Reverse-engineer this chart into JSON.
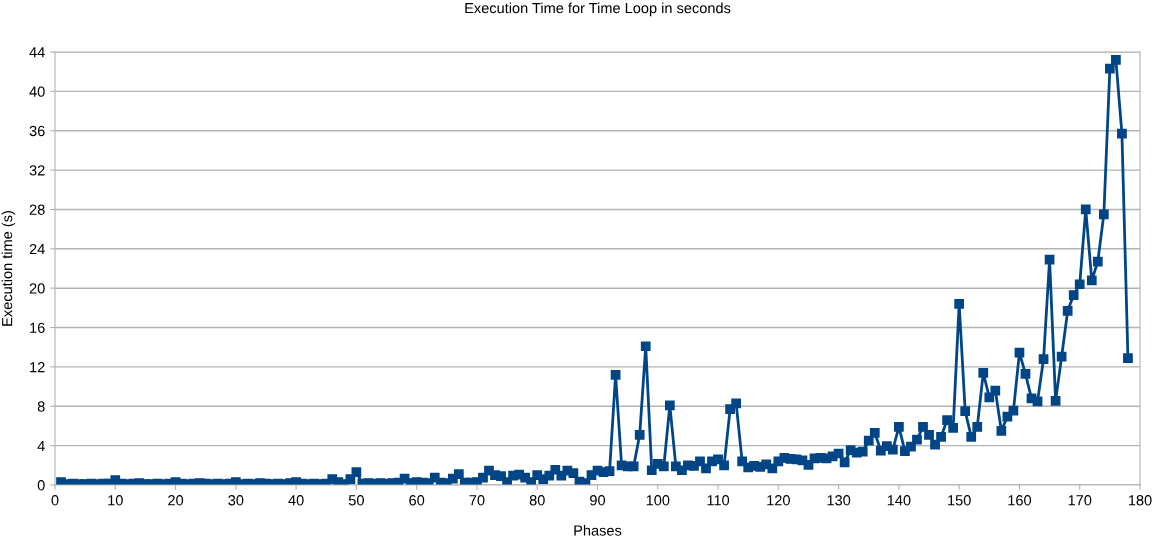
{
  "chart_data": {
    "type": "line",
    "title": "Execution Time for Time Loop in seconds",
    "xlabel": "Phases",
    "ylabel": "Execution time (s)",
    "x": [
      1,
      2,
      3,
      4,
      5,
      6,
      7,
      8,
      9,
      10,
      11,
      12,
      13,
      14,
      15,
      16,
      17,
      18,
      19,
      20,
      21,
      22,
      23,
      24,
      25,
      26,
      27,
      28,
      29,
      30,
      31,
      32,
      33,
      34,
      35,
      36,
      37,
      38,
      39,
      40,
      41,
      42,
      43,
      44,
      45,
      46,
      47,
      48,
      49,
      50,
      51,
      52,
      53,
      54,
      55,
      56,
      57,
      58,
      59,
      60,
      61,
      62,
      63,
      64,
      65,
      66,
      67,
      68,
      69,
      70,
      71,
      72,
      73,
      74,
      75,
      76,
      77,
      78,
      79,
      80,
      81,
      82,
      83,
      84,
      85,
      86,
      87,
      88,
      89,
      90,
      91,
      92,
      93,
      94,
      95,
      96,
      97,
      98,
      99,
      100,
      101,
      102,
      103,
      104,
      105,
      106,
      107,
      108,
      109,
      110,
      111,
      112,
      113,
      114,
      115,
      116,
      117,
      118,
      119,
      120,
      121,
      122,
      123,
      124,
      125,
      126,
      127,
      128,
      129,
      130,
      131,
      132,
      133,
      134,
      135,
      136,
      137,
      138,
      139,
      140,
      141,
      142,
      143,
      144,
      145,
      146,
      147,
      148,
      149,
      150,
      151,
      152,
      153,
      154,
      155,
      156,
      157,
      158,
      159,
      160,
      161,
      162,
      163,
      164,
      165,
      166,
      167,
      168,
      169,
      170,
      171,
      172,
      173,
      174,
      175,
      176,
      177,
      178
    ],
    "series": [
      {
        "color": "#004586",
        "values": [
          0.3,
          0.1,
          0.15,
          0.1,
          0.1,
          0.15,
          0.1,
          0.15,
          0.15,
          0.5,
          0.15,
          0.1,
          0.15,
          0.2,
          0.1,
          0.1,
          0.15,
          0.1,
          0.15,
          0.3,
          0.15,
          0.1,
          0.15,
          0.2,
          0.15,
          0.1,
          0.15,
          0.1,
          0.15,
          0.3,
          0.1,
          0.15,
          0.1,
          0.2,
          0.15,
          0.1,
          0.15,
          0.1,
          0.2,
          0.3,
          0.15,
          0.1,
          0.15,
          0.1,
          0.15,
          0.6,
          0.3,
          0.1,
          0.6,
          1.3,
          0.15,
          0.2,
          0.15,
          0.2,
          0.15,
          0.2,
          0.25,
          0.65,
          0.2,
          0.3,
          0.25,
          0.2,
          0.75,
          0.25,
          0.2,
          0.65,
          1.1,
          0.25,
          0.25,
          0.3,
          0.75,
          1.45,
          1.0,
          0.9,
          0.3,
          0.95,
          1.05,
          0.75,
          0.3,
          1.0,
          0.6,
          0.95,
          1.55,
          0.95,
          1.45,
          1.2,
          0.35,
          0.2,
          1.0,
          1.45,
          1.3,
          1.4,
          11.2,
          2.0,
          1.9,
          1.9,
          5.1,
          14.1,
          1.5,
          2.15,
          1.9,
          8.1,
          1.9,
          1.5,
          2.0,
          1.95,
          2.4,
          1.7,
          2.4,
          2.6,
          2.0,
          7.7,
          8.3,
          2.4,
          1.8,
          1.95,
          1.85,
          2.1,
          1.7,
          2.4,
          2.75,
          2.65,
          2.6,
          2.5,
          2.05,
          2.7,
          2.75,
          2.7,
          2.9,
          3.2,
          2.3,
          3.55,
          3.3,
          3.4,
          4.5,
          5.3,
          3.5,
          3.95,
          3.6,
          5.9,
          3.45,
          3.9,
          4.6,
          5.9,
          5.1,
          4.1,
          4.9,
          6.6,
          5.8,
          18.4,
          7.5,
          4.9,
          5.9,
          11.4,
          8.9,
          9.6,
          5.5,
          6.95,
          7.55,
          13.45,
          11.3,
          8.8,
          8.5,
          12.8,
          22.9,
          8.55,
          13.05,
          17.7,
          19.3,
          20.4,
          28.0,
          20.8,
          22.7,
          27.5,
          42.3,
          43.2,
          35.7,
          12.9
        ]
      }
    ],
    "xlim": [
      0,
      180
    ],
    "xticks": [
      0,
      10,
      20,
      30,
      40,
      50,
      60,
      70,
      80,
      90,
      100,
      110,
      120,
      130,
      140,
      150,
      160,
      170,
      180
    ],
    "ylim": [
      0,
      44
    ],
    "yticks": [
      0,
      4,
      8,
      12,
      16,
      20,
      24,
      28,
      32,
      36,
      40,
      44
    ],
    "grid": "y",
    "marker": "square",
    "line_style": "solid"
  }
}
